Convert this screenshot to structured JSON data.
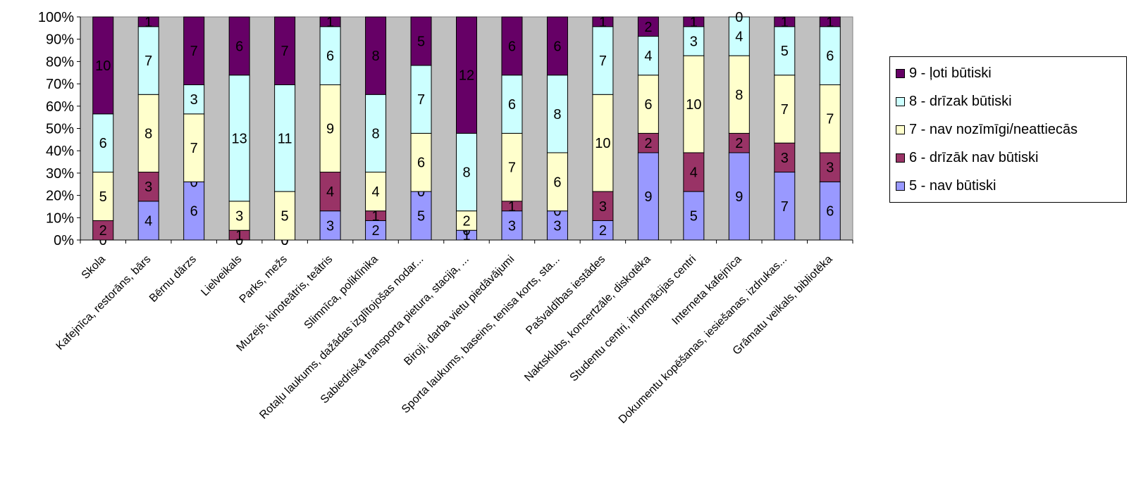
{
  "chart_data": {
    "type": "bar",
    "stacked": true,
    "percent": true,
    "title": "",
    "xlabel": "",
    "ylabel": "",
    "ylim": [
      0,
      100
    ],
    "y_ticks": [
      "0%",
      "10%",
      "20%",
      "30%",
      "40%",
      "50%",
      "60%",
      "70%",
      "80%",
      "90%",
      "100%"
    ],
    "grid": false,
    "plot_background": "#c0c0c0",
    "legend_position": "right",
    "categories": [
      "Skola",
      "Kafejnīca, restorāns, bārs",
      "Bērnu dārzs",
      "Lielveikals",
      "Parks, mežs",
      "Muzejs, kinoteātris, teātris",
      "Slimnīca, poliklīnika",
      "Rotaļu laukums, dažādas izglītojošas nodar...",
      "Sabiedriskā transporta pietura, stacija, ...",
      "Biroji, darba vietu piedāvājumi",
      "Sporta laukums, baseins, tenisa korts, sta...",
      "Pašvaldības iestādes",
      "Naktsklubs, koncertzāle, diskotēka",
      "Studentu centri, informācijas centri",
      "Interneta kafejnīca",
      "Dokumentu kopēšanas, iesiešanas, izdrukas...",
      "Grāmatu veikals, bibliotēka"
    ],
    "series": [
      {
        "name": "5 - nav būtiski",
        "color": "#9999ff",
        "values": [
          0,
          4,
          6,
          0,
          0,
          3,
          2,
          5,
          1,
          3,
          3,
          2,
          9,
          5,
          9,
          7,
          6
        ]
      },
      {
        "name": "6 - drīzāk nav būtiski",
        "color": "#993366",
        "values": [
          2,
          3,
          0,
          1,
          0,
          4,
          1,
          0,
          0,
          1,
          0,
          3,
          2,
          4,
          2,
          3,
          3
        ]
      },
      {
        "name": "7 - nav nozīmīgi/neattiecās",
        "color": "#ffffcc",
        "values": [
          5,
          8,
          7,
          3,
          5,
          9,
          4,
          6,
          2,
          7,
          6,
          10,
          6,
          10,
          8,
          7,
          7
        ]
      },
      {
        "name": "8 - drīzak būtiski",
        "color": "#ccffff",
        "values": [
          6,
          7,
          3,
          13,
          11,
          6,
          8,
          7,
          8,
          6,
          8,
          7,
          4,
          3,
          4,
          5,
          6
        ]
      },
      {
        "name": "9 - ļoti būtiski",
        "color": "#660066",
        "values": [
          10,
          1,
          7,
          6,
          7,
          1,
          8,
          5,
          12,
          6,
          6,
          1,
          2,
          1,
          0,
          1,
          1
        ]
      }
    ]
  }
}
